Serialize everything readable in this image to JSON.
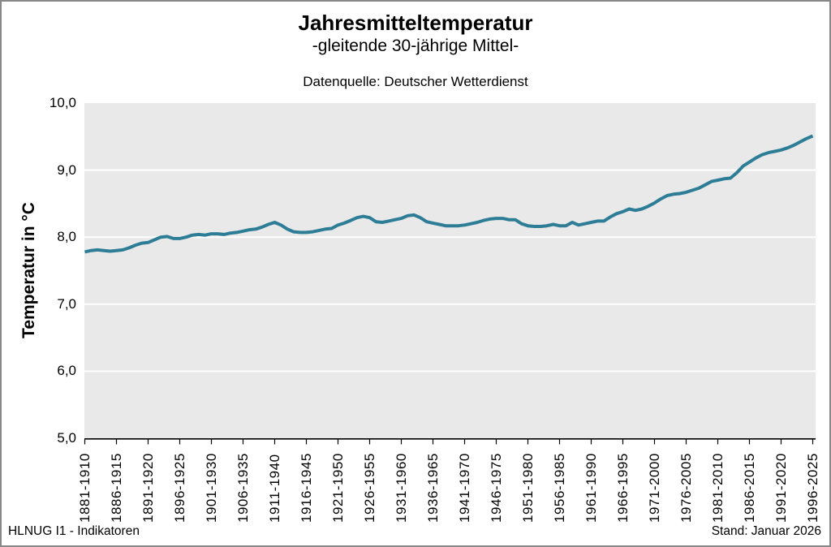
{
  "header": {
    "title": "Jahresmitteltemperatur",
    "subtitle": "-gleitende 30-jährige Mittel-",
    "source": "Datenquelle: Deutscher Wetterdienst"
  },
  "footer": {
    "left": "HLNUG I1 - Indikatoren",
    "right": "Stand: Januar 2026"
  },
  "colors": {
    "line": "#2d7d96",
    "plot_background": "#e9e9e9",
    "gridline": "#ffffff",
    "axis": "#000000",
    "frame": "#888888"
  },
  "chart_data": {
    "type": "line",
    "title": "Jahresmitteltemperatur",
    "subtitle": "-gleitende 30-jährige Mittel-",
    "source": "Datenquelle: Deutscher Wetterdienst",
    "ylabel": "Temperatur in °C",
    "xlabel": "",
    "ylim": [
      5.0,
      10.0
    ],
    "y_tick_values": [
      10,
      9,
      8,
      7,
      6,
      5
    ],
    "y_tick_labels": [
      "10,0",
      "9,0",
      "8,0",
      "7,0",
      "6,0",
      "5,0"
    ],
    "grid": "horizontal-only",
    "legend_position": "none",
    "x_tick_labels": [
      "1881-1910",
      "1886-1915",
      "1891-1920",
      "1896-1925",
      "1901-1930",
      "1906-1935",
      "1911-1940",
      "1916-1945",
      "1921-1950",
      "1926-1955",
      "1931-1960",
      "1936-1965",
      "1941-1970",
      "1946-1975",
      "1951-1980",
      "1956-1985",
      "1961-1990",
      "1966-1995",
      "1971-2000",
      "1976-2005",
      "1981-2010",
      "1986-2015",
      "1991-2020",
      "1996-2025"
    ],
    "x_tick_step_years": 5,
    "window_length_years": 30,
    "x_first_end_year": 1910,
    "x_last_end_year": 2025,
    "series": [
      {
        "name": "gleitendes 30-jähriges Mittel",
        "color": "#2d7d96",
        "values": [
          7.78,
          7.8,
          7.81,
          7.8,
          7.79,
          7.8,
          7.81,
          7.84,
          7.88,
          7.91,
          7.92,
          7.96,
          8.0,
          8.01,
          7.98,
          7.98,
          8.0,
          8.03,
          8.04,
          8.03,
          8.05,
          8.05,
          8.04,
          8.06,
          8.07,
          8.09,
          8.11,
          8.12,
          8.15,
          8.19,
          8.22,
          8.18,
          8.12,
          8.08,
          8.07,
          8.07,
          8.08,
          8.1,
          8.12,
          8.13,
          8.18,
          8.21,
          8.25,
          8.29,
          8.31,
          8.29,
          8.23,
          8.22,
          8.24,
          8.26,
          8.28,
          8.32,
          8.33,
          8.29,
          8.23,
          8.21,
          8.19,
          8.17,
          8.17,
          8.17,
          8.18,
          8.2,
          8.22,
          8.25,
          8.27,
          8.28,
          8.28,
          8.26,
          8.26,
          8.2,
          8.17,
          8.16,
          8.16,
          8.17,
          8.19,
          8.17,
          8.17,
          8.22,
          8.18,
          8.2,
          8.22,
          8.24,
          8.24,
          8.3,
          8.35,
          8.38,
          8.42,
          8.4,
          8.42,
          8.46,
          8.51,
          8.57,
          8.62,
          8.64,
          8.65,
          8.67,
          8.7,
          8.73,
          8.78,
          8.83,
          8.85,
          8.87,
          8.88,
          8.96,
          9.06,
          9.12,
          9.18,
          9.23,
          9.26,
          9.28,
          9.3,
          9.33,
          9.37,
          9.42,
          9.47,
          9.51
        ]
      }
    ]
  }
}
